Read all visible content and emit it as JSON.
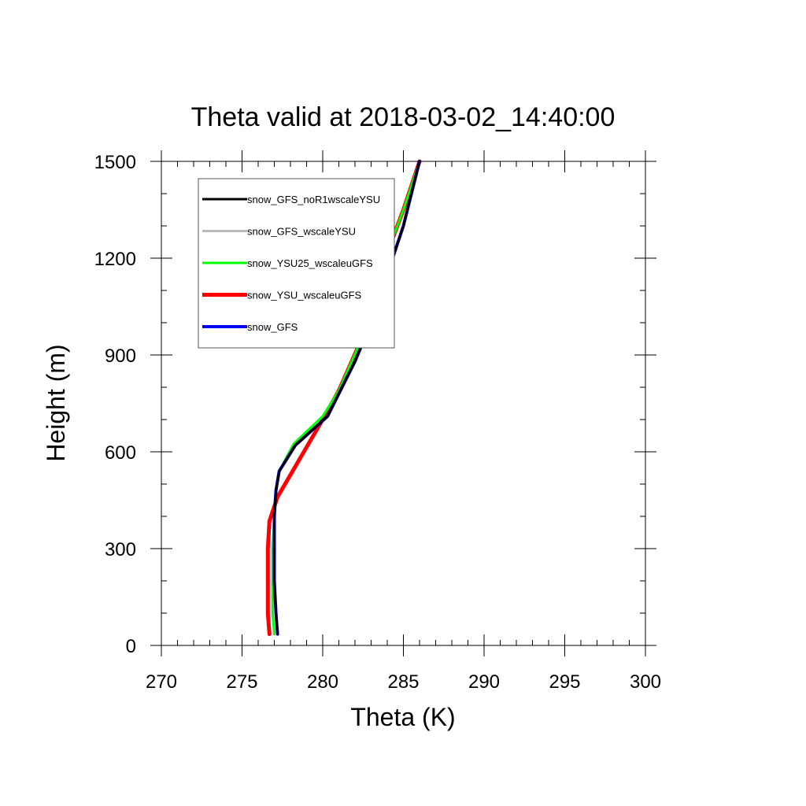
{
  "chart_data": {
    "type": "line",
    "title": "Theta valid at 2018-03-02_14:40:00",
    "xlabel": "Theta (K)",
    "ylabel": "Height (m)",
    "xlim": [
      270,
      300
    ],
    "ylim": [
      0,
      1500
    ],
    "xticks": [
      "270",
      "275",
      "280",
      "285",
      "290",
      "295",
      "300"
    ],
    "yticks": [
      "0",
      "300",
      "600",
      "900",
      "1200",
      "1500"
    ],
    "legend_position": "top-left",
    "grid": false,
    "series": [
      {
        "name": "snow_GFS_noR1wscaleYSU",
        "color": "#000000",
        "linewidth": 3,
        "points": [
          [
            277.2,
            35
          ],
          [
            277.1,
            100
          ],
          [
            277.0,
            200
          ],
          [
            277.0,
            300
          ],
          [
            277.0,
            400
          ],
          [
            277.1,
            480
          ],
          [
            277.3,
            540
          ],
          [
            278.3,
            620
          ],
          [
            280.3,
            710
          ],
          [
            281.0,
            780
          ],
          [
            282.0,
            880
          ],
          [
            283.0,
            1000
          ],
          [
            284.0,
            1150
          ],
          [
            285.0,
            1300
          ],
          [
            286.0,
            1500
          ]
        ]
      },
      {
        "name": "snow_GFS_wscaleYSU",
        "color": "#bbbbbb",
        "linewidth": 3,
        "points": [
          [
            277.2,
            35
          ],
          [
            277.1,
            100
          ],
          [
            277.0,
            200
          ],
          [
            277.0,
            300
          ],
          [
            277.0,
            400
          ],
          [
            277.1,
            480
          ],
          [
            277.3,
            540
          ],
          [
            278.3,
            620
          ],
          [
            280.3,
            710
          ],
          [
            281.0,
            780
          ],
          [
            282.0,
            880
          ],
          [
            283.0,
            1000
          ],
          [
            284.0,
            1150
          ],
          [
            285.0,
            1300
          ],
          [
            286.0,
            1500
          ]
        ]
      },
      {
        "name": "snow_YSU25_wscaleuGFS",
        "color": "#00ff00",
        "linewidth": 3,
        "points": [
          [
            277.0,
            35
          ],
          [
            276.9,
            100
          ],
          [
            276.9,
            200
          ],
          [
            276.9,
            300
          ],
          [
            277.0,
            400
          ],
          [
            277.1,
            480
          ],
          [
            277.3,
            540
          ],
          [
            278.2,
            625
          ],
          [
            280.0,
            710
          ],
          [
            281.0,
            790
          ],
          [
            282.5,
            960
          ],
          [
            283.5,
            1150
          ],
          [
            285.0,
            1350
          ],
          [
            286.0,
            1500
          ]
        ]
      },
      {
        "name": "snow_YSU_wscaleuGFS",
        "color": "#ff0000",
        "linewidth": 5,
        "points": [
          [
            276.7,
            35
          ],
          [
            276.6,
            100
          ],
          [
            276.6,
            200
          ],
          [
            276.6,
            300
          ],
          [
            276.7,
            385
          ],
          [
            277.2,
            460
          ],
          [
            280.0,
            700
          ],
          [
            281.0,
            790
          ],
          [
            282.5,
            960
          ],
          [
            283.5,
            1150
          ],
          [
            285.0,
            1350
          ],
          [
            286.0,
            1500
          ]
        ]
      },
      {
        "name": "snow_GFS",
        "color": "#0000ff",
        "linewidth": 4,
        "points": [
          [
            277.2,
            35
          ],
          [
            277.1,
            100
          ],
          [
            277.0,
            200
          ],
          [
            277.0,
            300
          ],
          [
            277.0,
            400
          ],
          [
            277.1,
            480
          ],
          [
            277.3,
            540
          ],
          [
            278.3,
            620
          ],
          [
            280.3,
            710
          ],
          [
            281.0,
            780
          ],
          [
            282.0,
            880
          ],
          [
            283.0,
            1000
          ],
          [
            284.0,
            1150
          ],
          [
            285.0,
            1300
          ],
          [
            286.0,
            1500
          ]
        ]
      }
    ],
    "draw_order": [
      3,
      2,
      1,
      4,
      0
    ]
  }
}
